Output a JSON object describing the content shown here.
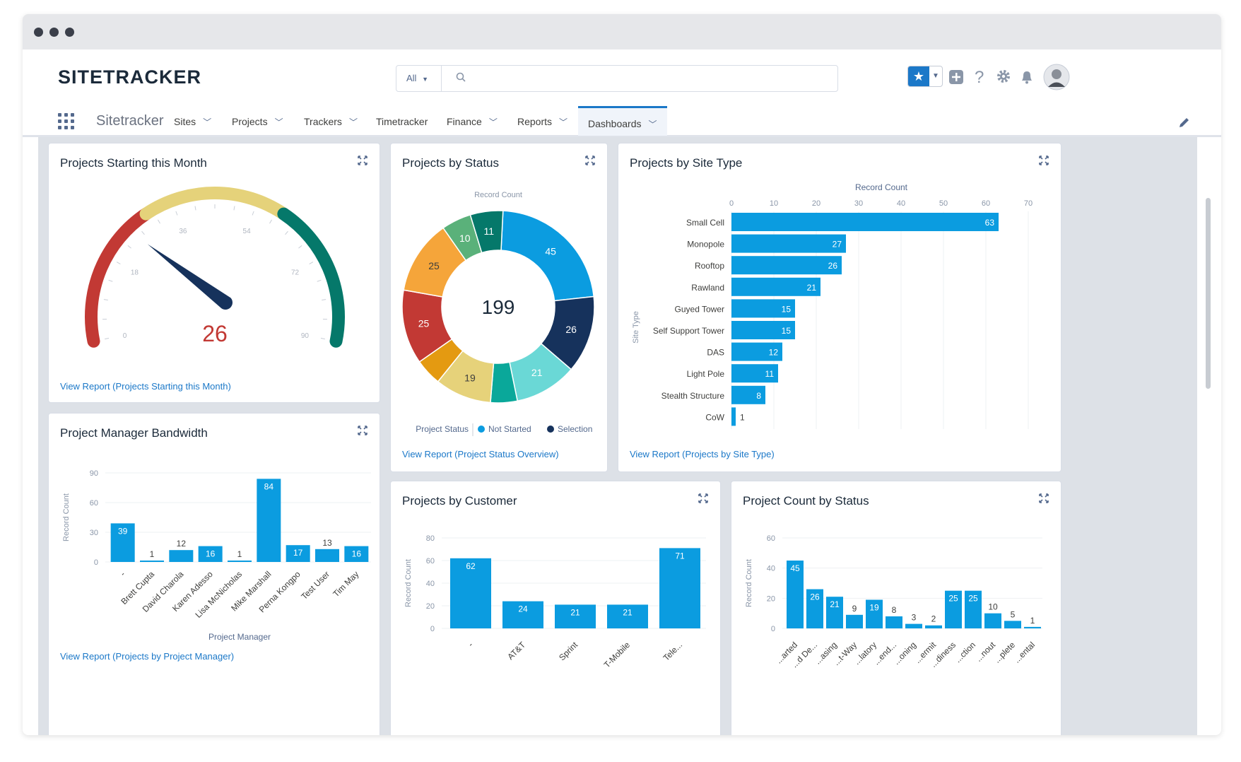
{
  "app": {
    "logo": "SITETRACKER",
    "app_name": "Sitetracker",
    "search_scope": "All",
    "search_placeholder": "",
    "colors": {
      "accent": "#1b78c8",
      "bar": "#0b9ce0"
    }
  },
  "nav": {
    "items": [
      {
        "label": "Sites",
        "has_menu": true
      },
      {
        "label": "Projects",
        "has_menu": true
      },
      {
        "label": "Trackers",
        "has_menu": true
      },
      {
        "label": "Timetracker",
        "has_menu": false
      },
      {
        "label": "Finance",
        "has_menu": true
      },
      {
        "label": "Reports",
        "has_menu": true
      },
      {
        "label": "Dashboards",
        "has_menu": true,
        "active": true
      }
    ]
  },
  "cards": {
    "gauge": {
      "title": "Projects Starting this Month",
      "value": "26",
      "view_report": "View Report (Projects Starting this Month)"
    },
    "donut": {
      "title": "Projects by Status",
      "view_report": "View Report (Project Status Overview)"
    },
    "sitetype": {
      "title": "Projects by Site Type",
      "view_report": "View Report (Projects by Site Type)"
    },
    "bandwidth": {
      "title": "Project Manager Bandwidth",
      "view_report": "View Report (Projects by Project Manager)"
    },
    "customer": {
      "title": "Projects by Customer"
    },
    "countstatus": {
      "title": "Project Count by Status"
    }
  },
  "chart_data": [
    {
      "type": "gauge",
      "title": "Projects Starting this Month",
      "value": 26,
      "min": 0,
      "max": 90,
      "ticks": [
        0,
        18,
        36,
        54,
        72,
        90
      ],
      "bands": [
        {
          "from": 0,
          "to": 30,
          "color": "#c23934"
        },
        {
          "from": 30,
          "to": 60,
          "color": "#e5d27a"
        },
        {
          "from": 60,
          "to": 90,
          "color": "#05786a"
        }
      ]
    },
    {
      "type": "pie",
      "title": "Projects by Status",
      "subtitle": "Record Count",
      "center_total": "199",
      "legend_title": "Project Status",
      "legend": [
        {
          "name": "Not Started",
          "color": "#0b9ce0"
        },
        {
          "name": "Selection",
          "color": "#16325c"
        }
      ],
      "slices": [
        {
          "value": 45,
          "color": "#0b9ce0",
          "label": "45"
        },
        {
          "value": 26,
          "color": "#16325c",
          "label": "26"
        },
        {
          "value": 21,
          "color": "#6ad8d6",
          "label": "21"
        },
        {
          "value": 9,
          "color": "#0aa89a",
          "label": ""
        },
        {
          "value": 19,
          "color": "#e6d27a",
          "label": "19"
        },
        {
          "value": 9,
          "color": "#e49a11",
          "label": ""
        },
        {
          "value": 25,
          "color": "#c23934",
          "label": "25"
        },
        {
          "value": 25,
          "color": "#f5a53a",
          "label": "25"
        },
        {
          "value": 10,
          "color": "#5ab17a",
          "label": "10"
        },
        {
          "value": 11,
          "color": "#05786a",
          "label": "11"
        }
      ]
    },
    {
      "type": "bar",
      "orientation": "horizontal",
      "title": "Projects by Site Type",
      "xlabel": "Record Count",
      "ylabel": "Site Type",
      "xlim": [
        0,
        70
      ],
      "xticks": [
        0,
        10,
        20,
        30,
        40,
        50,
        60,
        70
      ],
      "categories": [
        "Small Cell",
        "Monopole",
        "Rooftop",
        "Rawland",
        "Guyed Tower",
        "Self Support Tower",
        "DAS",
        "Light Pole",
        "Stealth Structure",
        "CoW"
      ],
      "values": [
        63,
        27,
        26,
        21,
        15,
        15,
        12,
        11,
        8,
        1
      ]
    },
    {
      "type": "bar",
      "title": "Project Manager Bandwidth",
      "xlabel": "Project Manager",
      "ylabel": "Record Count",
      "ylim": [
        0,
        90
      ],
      "yticks": [
        0,
        30,
        60,
        90
      ],
      "categories": [
        "-",
        "Brett Cupta",
        "David Charola",
        "Karen Adesso",
        "Lisa McNicholas",
        "Mike Marshall",
        "Perna Kongpo",
        "Test User",
        "Tim May"
      ],
      "values": [
        39,
        1,
        12,
        16,
        1,
        84,
        17,
        13,
        16
      ]
    },
    {
      "type": "bar",
      "title": "Projects by Customer",
      "xlabel": "",
      "ylabel": "Record Count",
      "ylim": [
        0,
        80
      ],
      "yticks": [
        0,
        20,
        40,
        60,
        80
      ],
      "categories": [
        "-",
        "AT&T",
        "Sprint",
        "T-Mobile",
        "Tele..."
      ],
      "values": [
        62,
        24,
        21,
        21,
        71
      ]
    },
    {
      "type": "bar",
      "title": "Project Count by Status",
      "xlabel": "",
      "ylabel": "Record Count",
      "ylim": [
        0,
        60
      ],
      "yticks": [
        0,
        20,
        40,
        60
      ],
      "categories": [
        "...arted",
        "...d De...",
        "...asing",
        "...t-Way",
        "...latory",
        "...end...",
        "...oning",
        "...ermit",
        "...diness",
        "...ction",
        "...nout",
        "...plete",
        "...ental"
      ],
      "values": [
        45,
        26,
        21,
        9,
        19,
        8,
        3,
        2,
        25,
        25,
        10,
        5,
        1
      ]
    }
  ]
}
